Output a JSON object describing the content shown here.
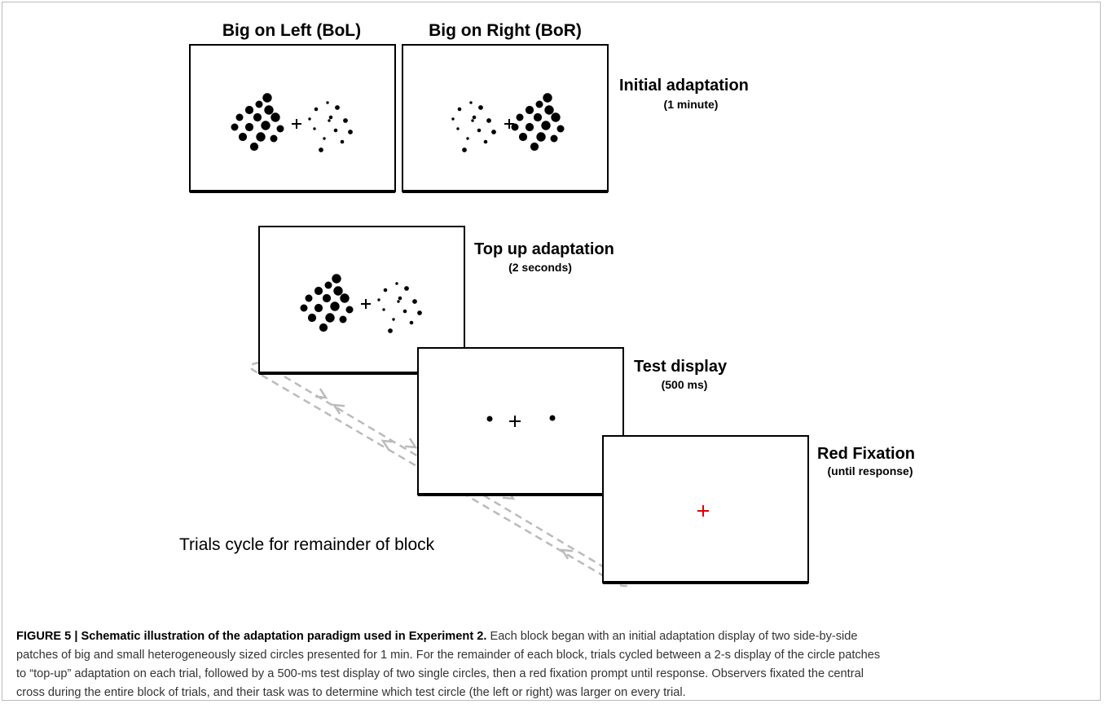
{
  "figure": {
    "panels": [
      {
        "title": "Big on Left (BoL)"
      },
      {
        "title": "Big on Right (BoR)"
      }
    ],
    "stages": [
      {
        "name": "Initial adaptation",
        "duration": "(1 minute)"
      },
      {
        "name": "Top up adaptation",
        "duration": "(2 seconds)"
      },
      {
        "name": "Test display",
        "duration": "(500 ms)"
      },
      {
        "name": "Red Fixation",
        "duration": "(until response)"
      }
    ],
    "cycle_note": "Trials cycle for remainder of block"
  },
  "caption": {
    "label": "FIGURE 5 | Schematic illustration of the adaptation paradigm used in Experiment 2.",
    "lines": [
      " Each block began with an initial adaptation display of two side-by-side",
      "patches of big and small heterogeneously sized circles presented for 1 min. For the remainder of each block, trials cycled between a 2-s display of the circle patches",
      "to “top-up” adaptation on each trial, followed by a 500-ms test display of two single circles, then a red fixation prompt until response. Observers fixated the central",
      "cross during the entire block of trials, and their task was to determine which test circle (the left or right) was larger on every trial."
    ]
  }
}
